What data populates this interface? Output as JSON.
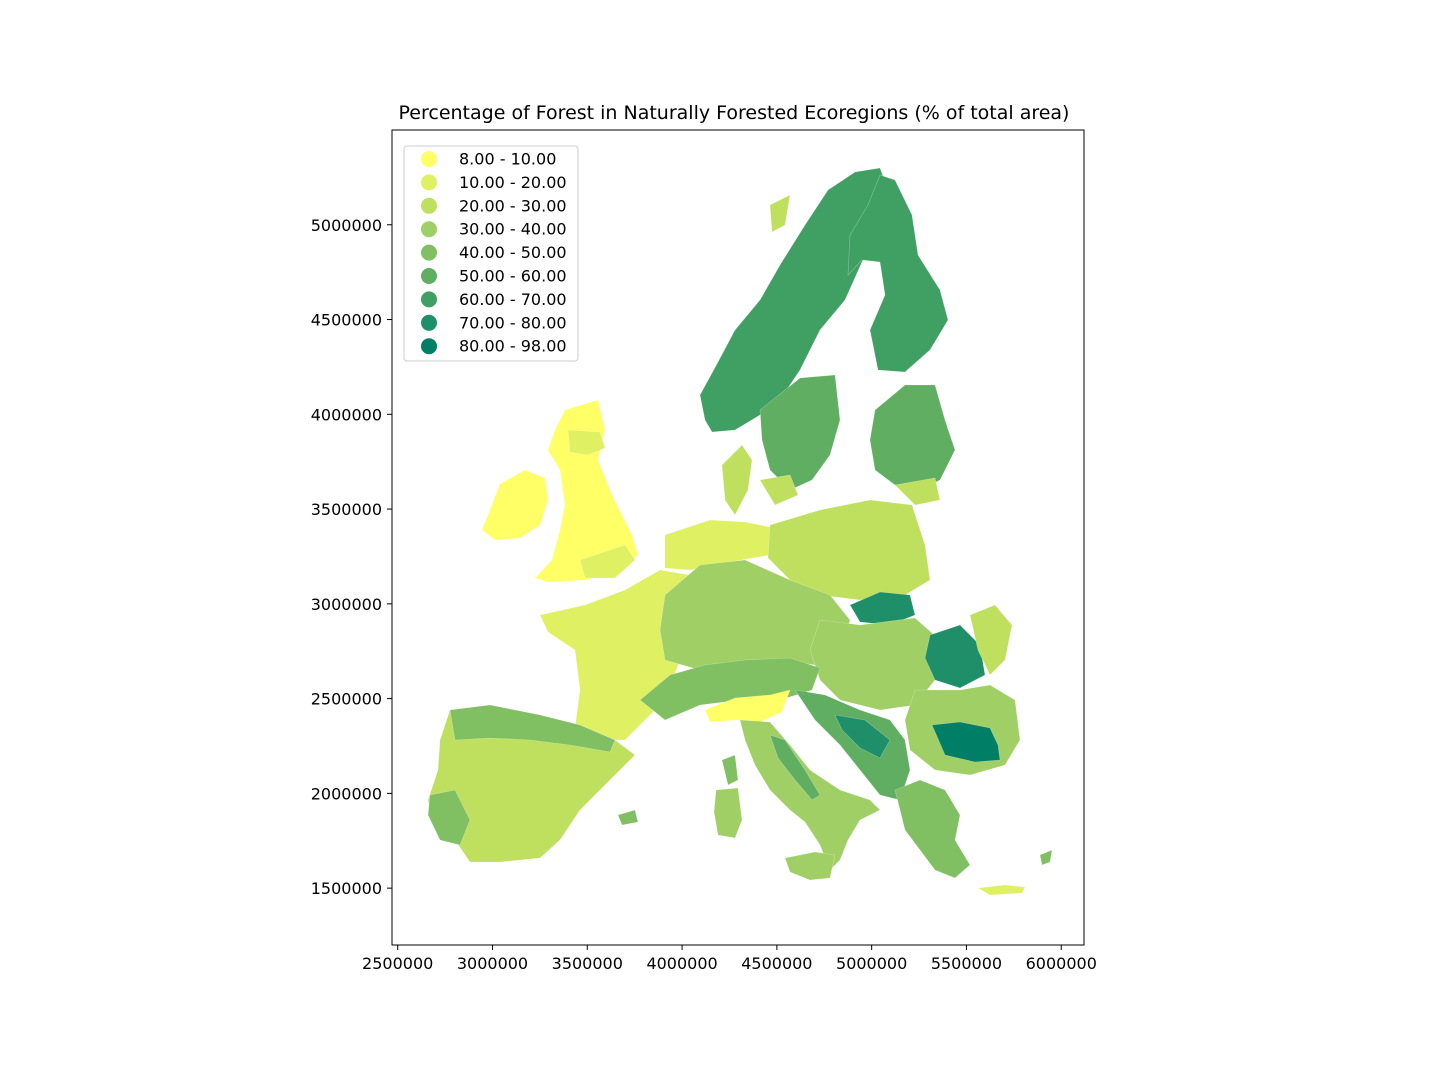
{
  "chart_data": {
    "type": "choropleth",
    "title": "Percentage of Forest in Naturally Forested Ecoregions (% of total area)",
    "xlim": [
      2470000,
      6120000
    ],
    "ylim": [
      1200000,
      5500000
    ],
    "x_ticks": [
      2500000,
      3000000,
      3500000,
      4000000,
      4500000,
      5000000,
      5500000,
      6000000
    ],
    "y_ticks": [
      1500000,
      2000000,
      2500000,
      3000000,
      3500000,
      4000000,
      4500000,
      5000000
    ],
    "x_tick_labels": [
      "2500000",
      "3000000",
      "3500000",
      "4000000",
      "4500000",
      "5000000",
      "5500000",
      "6000000"
    ],
    "y_tick_labels": [
      "1500000",
      "2000000",
      "2500000",
      "3000000",
      "3500000",
      "4000000",
      "4500000",
      "5000000"
    ],
    "legend_placement": "top-left",
    "legend": [
      {
        "label": "8.00 - 10.00",
        "color": "#ffff66"
      },
      {
        "label": "10.00 - 20.00",
        "color": "#dff062"
      },
      {
        "label": "20.00 - 30.00",
        "color": "#bfe05e"
      },
      {
        "label": "30.00 - 40.00",
        "color": "#a0cf66"
      },
      {
        "label": "40.00 - 50.00",
        "color": "#80bf62"
      },
      {
        "label": "50.00 - 60.00",
        "color": "#5fae61"
      },
      {
        "label": "60.00 - 70.00",
        "color": "#40a064"
      },
      {
        "label": "70.00 - 80.00",
        "color": "#1f8f6a"
      },
      {
        "label": "80.00 - 98.00",
        "color": "#007f66"
      }
    ]
  }
}
